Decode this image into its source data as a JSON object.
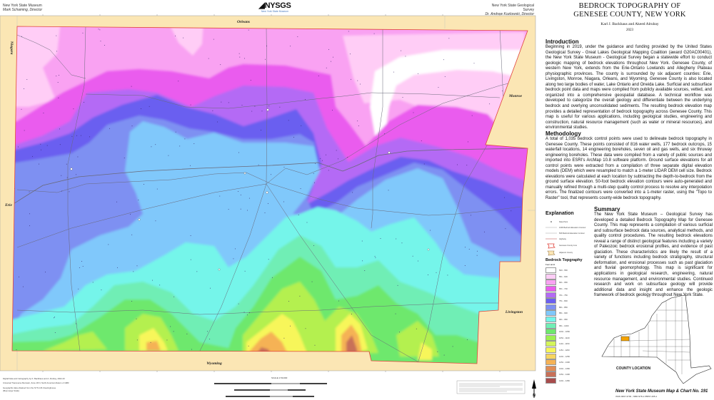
{
  "header": {
    "left_org": "New York State Museum",
    "left_director": "Mark Schaming, Director",
    "logo": "NYSGS",
    "logo_sub": "New York State Museum",
    "right_org": "New York State Geological Survey",
    "right_director": "Dr. Andrew Kozlowski, Director"
  },
  "map": {
    "adjacent_counties": {
      "north": "Orleans",
      "northwest": "Niagara",
      "east": "Monroe",
      "west": "Erie",
      "southeast": "Livingston",
      "south": "Wyoming"
    },
    "colors": {
      "frame": "#fbe6b4",
      "county_line": "#e0443c",
      "road": "#6a6a7a"
    }
  },
  "title": {
    "line1": "BEDROCK TOPOGRAPHY OF",
    "line2": "GENESEE COUNTY, NEW YORK",
    "authors": "Karl J. Backhaus and Akeed Alrubay",
    "year": "2023"
  },
  "introduction": {
    "heading": "Introduction",
    "text": "Beginning in 2019, under the guidance and funding provided by the United States Geological Survey - Great Lakes Geological Mapping Coalition (award G20AC00401), the New York State Museum - Geological Survey began a statewide effort to conduct geologic mapping of bedrock elevations throughout New York. Genesee County, of western New York, extends from the Erie-Ontario Lowlands and Allegheny Plateau physiographic provinces. The county is surrounded by six adjacent counties: Erie, Livingston, Monroe, Niagara, Orleans, and Wyoming. Genesee County is also located along two large bodies of water, Lake Ontario and Oneida Lake. Surficial and subsurface bedrock point data and maps were compiled from publicly available sources, vetted, and organized into a comprehensive geospatial database. A technical workflow was developed to categorize the overall geology and differentiate between the underlying bedrock and overlying unconsolidated sediments. The resulting bedrock elevation map provides a detailed representation of bedrock topography across Genesee County. This map is useful for various applications, including geological studies, engineering and construction, natural resource management (such as water or mineral resources), and environmental studies."
  },
  "methodology": {
    "heading": "Methodology",
    "text": "A total of 1,035 bedrock control points were used to delineate bedrock topography in Genesee County. These points consisted of 816 water wells, 177 bedrock outcrops, 15 waterfall locations, 14 engineering boreholes, seven oil and gas wells, and six thruway engineering boreholes. These data were compiled from a variety of public sources and imported into ESRI's ArcMap 10.8 software platform. Ground surface elevations for all control points were extracted from a compilation of three separate digital elevation models (DEM) which were resampled to match a 1-meter LIDAR DEM cell size. Bedrock elevations were calculated at each location by subtracting the depth-to-bedrock from the ground surface elevation. 50-foot bedrock elevation contours were auto-generated and manually refined through a multi-step quality control process to resolve any interpolation errors. The finalized contours were converted into a 1-meter raster, using the \"Topo to Raster\" tool, that represents county-wide bedrock topography."
  },
  "summary": {
    "heading": "Summary",
    "text": "The New York State Museum – Geological Survey has developed a detailed Bedrock Topography Map for Genesee County. This map represents a compilation of various surficial and subsurface bedrock data sources, analytical methods, and quality control procedures. The resulting bedrock elevations reveal a range of distinct geological features including a variety of Paleozoic bedrock erosional profiles, and evidence of past glaciation. These characteristics are likely the result of a variety of functions including bedrock stratigraphy, structural deformation, and erosional processes such as past glaciation and fluvial geomorphology. This map is significant for applications in geological research, engineering, natural resource management, and environmental studies. Continued research and work on subsurface geology will provide additional data and insight and enhance the geologic framework of bedrock geology throughout New York State."
  },
  "explanation": {
    "heading": "Explanation",
    "items": [
      {
        "label": "Data Point",
        "icon": "dot"
      },
      {
        "label": "100ft Bedrock Elevation Contour",
        "icon": "line"
      },
      {
        "label": "50ft Bedrock Elevation Contour",
        "icon": "line"
      },
      {
        "label": "Highway",
        "icon": "road"
      },
      {
        "label": "Genesee County Line",
        "icon": "county-outline-red"
      },
      {
        "label": "Adjacent County",
        "icon": "county-outline-tan"
      }
    ],
    "bedrock_heading": "Bedrock Topgraphy",
    "units": "Feet amsl",
    "classes": [
      {
        "range": "500 - 550",
        "color": "#ffffff"
      },
      {
        "range": "551 - 600",
        "color": "#ffcdf6"
      },
      {
        "range": "601 - 650",
        "color": "#f9a2f2"
      },
      {
        "range": "651 - 700",
        "color": "#ea5cee"
      },
      {
        "range": "701 - 750",
        "color": "#b46af5"
      },
      {
        "range": "751 - 800",
        "color": "#6b5ff0"
      },
      {
        "range": "801 - 850",
        "color": "#7e90f2"
      },
      {
        "range": "851 - 900",
        "color": "#80c8fb"
      },
      {
        "range": "901 - 950",
        "color": "#74f5ea"
      },
      {
        "range": "951 - 1000",
        "color": "#70eeb5"
      },
      {
        "range": "1001 - 1050",
        "color": "#6ee86d"
      },
      {
        "range": "1051 - 1100",
        "color": "#9cf050"
      },
      {
        "range": "1101 - 1150",
        "color": "#d4f55a"
      },
      {
        "range": "1151 - 1200",
        "color": "#f7f65a"
      },
      {
        "range": "1201 - 1250",
        "color": "#f7d560"
      },
      {
        "range": "1251 - 1300",
        "color": "#f5b255"
      },
      {
        "range": "1301 - 1350",
        "color": "#e08c55"
      },
      {
        "range": "1351 - 1400",
        "color": "#c87058"
      },
      {
        "range": "1401 - 1450",
        "color": "#a84c4c"
      }
    ]
  },
  "inset": {
    "caption": "COUNTY LOCATION",
    "highlight_color": "#f5a300"
  },
  "footer": {
    "series": "New York State Museum Map & Chart No. 191",
    "isbn": "ISSN 0097-3793 ; ISBN 978-1-55557-465-1",
    "credit1": "Digital Data and Cartography by K. Backhaus and A. Alrubay, 2022-23",
    "credit2": "Universal Transverse Mercator, Zone 18 N, North American Datum of 1983",
    "credit3": "Geographic data obtained from the NYS GIS Clearinghouse",
    "credit4": "(Map Large Scale)",
    "scale": "SCALE 1:50,000"
  }
}
